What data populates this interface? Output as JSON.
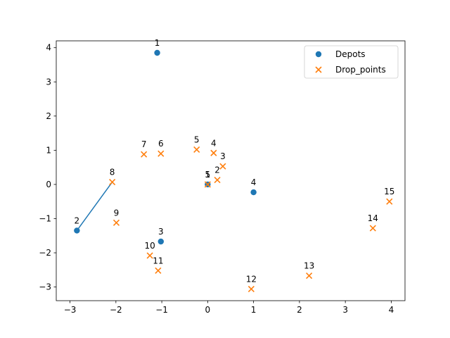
{
  "chart_data": {
    "type": "scatter",
    "xlim": [
      -3.3,
      4.3
    ],
    "ylim": [
      -3.4,
      4.2
    ],
    "x_ticks": [
      -3,
      -2,
      -1,
      0,
      1,
      2,
      3,
      4
    ],
    "y_ticks": [
      -3,
      -2,
      -1,
      0,
      1,
      2,
      3,
      4
    ],
    "grid": false,
    "legend_position": "top-right",
    "series": [
      {
        "name": "Depots",
        "marker": "circle",
        "color": "#1f77b4",
        "points": [
          {
            "label": "1",
            "x": -1.1,
            "y": 3.85
          },
          {
            "label": "2",
            "x": -2.85,
            "y": -1.35
          },
          {
            "label": "3",
            "x": -1.02,
            "y": -1.67
          },
          {
            "label": "4",
            "x": 1.0,
            "y": -0.23
          },
          {
            "label": "5",
            "x": 0.0,
            "y": 0.0
          }
        ]
      },
      {
        "name": "Drop_points",
        "marker": "x",
        "color": "#ff7f0e",
        "points": [
          {
            "label": "1",
            "x": 0.0,
            "y": 0.0
          },
          {
            "label": "2",
            "x": 0.21,
            "y": 0.13
          },
          {
            "label": "3",
            "x": 0.33,
            "y": 0.53
          },
          {
            "label": "4",
            "x": 0.13,
            "y": 0.92
          },
          {
            "label": "5",
            "x": -0.24,
            "y": 1.02
          },
          {
            "label": "6",
            "x": -1.02,
            "y": 0.9
          },
          {
            "label": "7",
            "x": -1.39,
            "y": 0.88
          },
          {
            "label": "8",
            "x": -2.08,
            "y": 0.07
          },
          {
            "label": "9",
            "x": -1.99,
            "y": -1.12
          },
          {
            "label": "10",
            "x": -1.26,
            "y": -2.08
          },
          {
            "label": "11",
            "x": -1.08,
            "y": -2.52
          },
          {
            "label": "12",
            "x": 0.95,
            "y": -3.06
          },
          {
            "label": "13",
            "x": 2.21,
            "y": -2.67
          },
          {
            "label": "14",
            "x": 3.6,
            "y": -1.28
          },
          {
            "label": "15",
            "x": 3.96,
            "y": -0.5
          }
        ]
      }
    ],
    "lines": [
      {
        "color": "#1f77b4",
        "points": [
          [
            -2.85,
            -1.35
          ],
          [
            -2.08,
            0.07
          ]
        ]
      }
    ]
  }
}
